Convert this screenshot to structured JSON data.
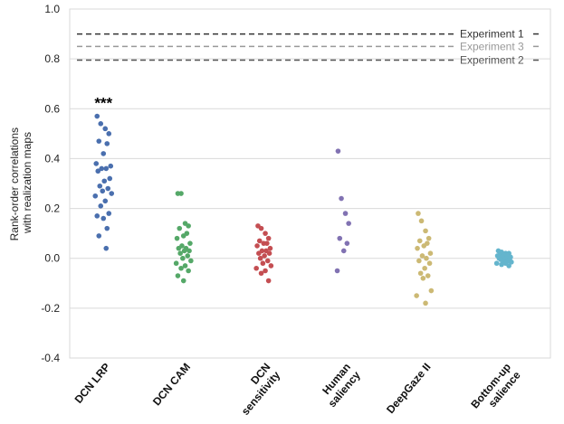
{
  "chart_data": {
    "type": "scatter",
    "ylabel_lines": [
      "Rank-order correlations",
      "with realization maps"
    ],
    "ylim": [
      -0.4,
      1.0
    ],
    "yticks": [
      "-0.4",
      "-0.2",
      "0.0",
      "0.2",
      "0.4",
      "0.6",
      "0.8",
      "1.0"
    ],
    "ytick_values": [
      -0.4,
      -0.2,
      0.0,
      0.2,
      0.4,
      0.6,
      0.8,
      1.0
    ],
    "grid": true,
    "reference_lines": [
      {
        "label": "Experiment 1",
        "value": 0.9,
        "color": "#333333"
      },
      {
        "label": "Experiment 3",
        "value": 0.85,
        "color": "#999999"
      },
      {
        "label": "Experiment 2",
        "value": 0.795,
        "color": "#555555"
      }
    ],
    "categories": [
      {
        "name": "DCN LRP",
        "label_lines": [
          "DCN LRP"
        ],
        "color": "#4a6fae",
        "annotation": "***",
        "points": [
          0.57,
          0.54,
          0.52,
          0.5,
          0.47,
          0.46,
          0.42,
          0.38,
          0.37,
          0.36,
          0.36,
          0.35,
          0.32,
          0.31,
          0.29,
          0.28,
          0.27,
          0.26,
          0.25,
          0.23,
          0.21,
          0.18,
          0.17,
          0.16,
          0.12,
          0.09,
          0.04
        ]
      },
      {
        "name": "DCN CAM",
        "label_lines": [
          "DCN CAM"
        ],
        "color": "#55a868",
        "points": [
          0.26,
          0.26,
          0.14,
          0.13,
          0.12,
          0.1,
          0.09,
          0.08,
          0.06,
          0.05,
          0.04,
          0.04,
          0.03,
          0.03,
          0.02,
          0.01,
          0.0,
          -0.01,
          -0.02,
          -0.03,
          -0.04,
          -0.05,
          -0.07,
          -0.09
        ]
      },
      {
        "name": "DCN sensitivity",
        "label_lines": [
          "DCN",
          "sensitivity"
        ],
        "color": "#c44e52",
        "points": [
          0.13,
          0.12,
          0.1,
          0.08,
          0.07,
          0.06,
          0.06,
          0.05,
          0.04,
          0.03,
          0.03,
          0.02,
          0.02,
          0.01,
          0.0,
          -0.01,
          -0.02,
          -0.03,
          -0.04,
          -0.05,
          -0.06,
          -0.09
        ]
      },
      {
        "name": "Human saliency",
        "label_lines": [
          "Human",
          "saliency"
        ],
        "color": "#8172b2",
        "points": [
          0.43,
          0.24,
          0.18,
          0.14,
          0.08,
          0.06,
          0.03,
          -0.05
        ]
      },
      {
        "name": "DeepGaze II",
        "label_lines": [
          "DeepGaze II"
        ],
        "color": "#ccb974",
        "points": [
          0.18,
          0.15,
          0.11,
          0.08,
          0.07,
          0.06,
          0.05,
          0.04,
          0.02,
          0.01,
          0.0,
          -0.01,
          -0.02,
          -0.04,
          -0.06,
          -0.07,
          -0.08,
          -0.13,
          -0.15,
          -0.18
        ]
      },
      {
        "name": "Bottom-up salience",
        "label_lines": [
          "Bottom-up",
          "salience"
        ],
        "color": "#64b5cd",
        "points": [
          0.03,
          0.025,
          0.02,
          0.02,
          0.015,
          0.01,
          0.01,
          0.01,
          0.005,
          0.005,
          0.0,
          0.0,
          0.0,
          -0.005,
          -0.005,
          -0.01,
          -0.01,
          -0.015,
          -0.02,
          -0.02,
          -0.025,
          -0.03
        ]
      }
    ]
  }
}
